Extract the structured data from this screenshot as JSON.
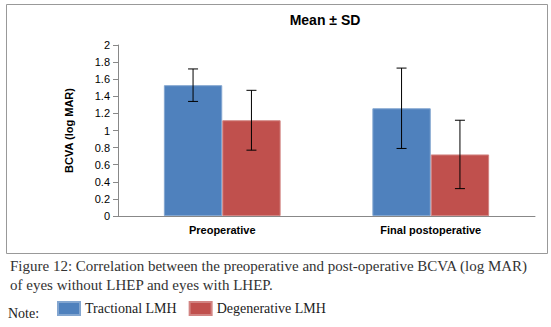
{
  "chart_data": {
    "type": "bar",
    "title": "Mean ± SD",
    "y_label": "BCVA (log MAR)",
    "categories": [
      "Preoperative",
      "Final postoperative"
    ],
    "series": [
      {
        "name": "Tractional LMH",
        "color": "#4f81bd",
        "values": [
          1.53,
          1.26
        ],
        "errors": [
          0.19,
          0.47
        ]
      },
      {
        "name": "Degenerative LMH",
        "color": "#c0504d",
        "values": [
          1.12,
          0.72
        ],
        "errors": [
          0.35,
          0.4
        ]
      }
    ],
    "ylim": [
      0,
      2
    ],
    "yticks": [
      0,
      0.2,
      0.4,
      0.6,
      0.8,
      1,
      1.2,
      1.4,
      1.6,
      1.8,
      2
    ],
    "grid": false,
    "legend": "bottom",
    "caption": "Figure 12: Correlation between the preoperative and post-operative BCVA (log MAR) of eyes without LHEP and eyes with LHEP.",
    "note": "Note:"
  }
}
